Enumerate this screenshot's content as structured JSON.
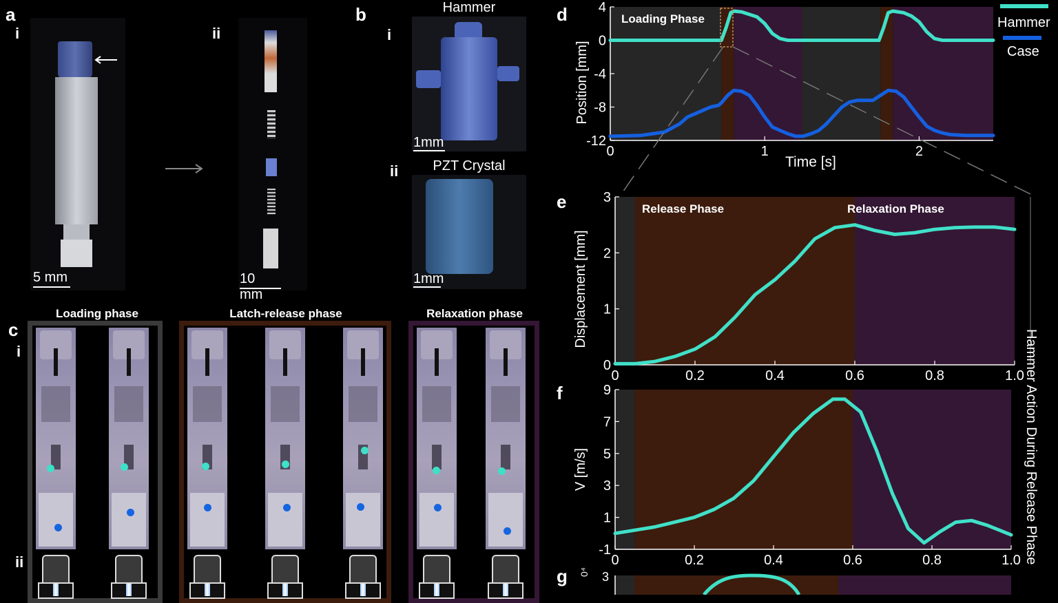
{
  "panels": {
    "a": {
      "label": "a",
      "i": "i",
      "ii": "ii",
      "scale_i": "5 mm",
      "scale_ii": "10 mm"
    },
    "b": {
      "label": "b",
      "i": "i",
      "ii": "ii",
      "hammer_title": "Hammer",
      "crystal_title": "PZT Crystal",
      "scale_i": "1mm",
      "scale_ii": "1mm"
    },
    "c": {
      "label": "c",
      "i": "i",
      "ii": "ii",
      "phase_loading": "Loading phase",
      "phase_latch": "Latch-release phase",
      "phase_relax": "Relaxation phase"
    },
    "d": {
      "label": "d",
      "region_label": "Loading Phase"
    },
    "e": {
      "label": "e",
      "release_label": "Release Phase",
      "relax_label": "Relaxation Phase"
    },
    "f": {
      "label": "f"
    },
    "g": {
      "label": "g",
      "ytick_top": "3",
      "exp": "0⁴"
    }
  },
  "side_caption": "Hammer Action During Release Phase",
  "colors": {
    "hammer": "#40e0c8",
    "case": "#1560e0",
    "loading": "#262626",
    "release": "#3d1c0d",
    "relax": "#341734"
  },
  "chart_data": [
    {
      "name": "d",
      "type": "line",
      "xlabel": "Time [s]",
      "ylabel": "Position  [mm]",
      "xlim": [
        0,
        2.48
      ],
      "ylim": [
        -12,
        4
      ],
      "xticks": [
        0,
        1,
        2
      ],
      "xticklabels": [
        "0",
        "1",
        "2"
      ],
      "yticks": [
        4,
        0,
        -4,
        -8,
        -12
      ],
      "yticklabels": [
        "4",
        "0",
        "-4",
        "-8",
        "-12"
      ],
      "legend": [
        "Hammer",
        "Case"
      ],
      "bands": [
        {
          "x0": 0,
          "x1": 0.72,
          "phase": "loading"
        },
        {
          "x0": 0.72,
          "x1": 0.8,
          "phase": "release"
        },
        {
          "x0": 0.8,
          "x1": 1.24,
          "phase": "relax"
        },
        {
          "x0": 1.24,
          "x1": 1.75,
          "phase": "loading"
        },
        {
          "x0": 1.75,
          "x1": 1.83,
          "phase": "release"
        },
        {
          "x0": 1.83,
          "x1": 2.48,
          "phase": "relax"
        }
      ],
      "series": [
        {
          "name": "Hammer",
          "x": [
            0,
            0.3,
            0.6,
            0.72,
            0.75,
            0.78,
            0.8,
            0.85,
            0.9,
            0.95,
            1.0,
            1.05,
            1.1,
            1.15,
            1.24,
            1.5,
            1.74,
            1.77,
            1.8,
            1.83,
            1.9,
            1.95,
            2.0,
            2.05,
            2.1,
            2.15,
            2.2,
            2.48
          ],
          "y": [
            0,
            0,
            0,
            0,
            1.5,
            3.3,
            3.5,
            3.4,
            3.1,
            2.8,
            2.0,
            0.8,
            0.2,
            0,
            0,
            0,
            0,
            1.5,
            3.3,
            3.5,
            3.3,
            2.9,
            2.2,
            1.0,
            0.2,
            0,
            0,
            0
          ]
        },
        {
          "name": "Case",
          "x": [
            0,
            0.2,
            0.35,
            0.45,
            0.5,
            0.55,
            0.6,
            0.65,
            0.7,
            0.72,
            0.76,
            0.8,
            0.85,
            0.9,
            0.95,
            1.0,
            1.05,
            1.1,
            1.15,
            1.2,
            1.25,
            1.3,
            1.35,
            1.4,
            1.45,
            1.5,
            1.55,
            1.6,
            1.7,
            1.75,
            1.8,
            1.85,
            1.9,
            1.95,
            2.0,
            2.05,
            2.1,
            2.15,
            2.2,
            2.3,
            2.48
          ],
          "y": [
            -11.5,
            -11.4,
            -11,
            -10,
            -9.2,
            -8.8,
            -8.4,
            -8.0,
            -7.8,
            -7.5,
            -6.6,
            -6.0,
            -6.1,
            -6.6,
            -7.8,
            -9.2,
            -10.4,
            -10.8,
            -11.2,
            -11.5,
            -11.5,
            -11.2,
            -10.8,
            -10.0,
            -9.0,
            -8.0,
            -7.4,
            -7.2,
            -7.2,
            -6.6,
            -6.0,
            -6.1,
            -6.8,
            -8.0,
            -9.2,
            -10.3,
            -10.8,
            -11.1,
            -11.3,
            -11.4,
            -11.4
          ]
        }
      ]
    },
    {
      "name": "e",
      "type": "line",
      "xlabel": "",
      "ylabel": "Displacement [mm]",
      "xlim": [
        0,
        1.0
      ],
      "ylim": [
        0,
        3
      ],
      "xticks": [
        0,
        0.2,
        0.4,
        0.6,
        0.8,
        1.0
      ],
      "xticklabels": [
        "0",
        "0.2",
        "0.4",
        "0.6",
        "0.8",
        "1.0"
      ],
      "yticks": [
        3,
        2,
        1,
        0
      ],
      "yticklabels": [
        "3",
        "2",
        "1",
        "0"
      ],
      "bands": [
        {
          "x0": 0,
          "x1": 0.05,
          "phase": "loading"
        },
        {
          "x0": 0.05,
          "x1": 0.6,
          "phase": "release"
        },
        {
          "x0": 0.6,
          "x1": 1.0,
          "phase": "relax"
        }
      ],
      "series": [
        {
          "name": "Hammer",
          "x": [
            0,
            0.05,
            0.1,
            0.15,
            0.2,
            0.25,
            0.3,
            0.35,
            0.4,
            0.45,
            0.5,
            0.55,
            0.6,
            0.65,
            0.7,
            0.75,
            0.8,
            0.85,
            0.9,
            0.95,
            1.0
          ],
          "y": [
            0.02,
            0.02,
            0.06,
            0.15,
            0.28,
            0.5,
            0.85,
            1.25,
            1.52,
            1.85,
            2.25,
            2.45,
            2.5,
            2.4,
            2.33,
            2.36,
            2.42,
            2.45,
            2.46,
            2.46,
            2.42
          ]
        }
      ]
    },
    {
      "name": "f",
      "type": "line",
      "xlabel": "",
      "ylabel": "V [m/s]",
      "xlim": [
        0,
        1.0
      ],
      "ylim": [
        -1,
        9
      ],
      "xticks": [
        0,
        0.2,
        0.4,
        0.6,
        0.8,
        1.0
      ],
      "xticklabels": [
        "0",
        "0.2",
        "0.4",
        "0.6",
        "0.8",
        "1.0"
      ],
      "yticks": [
        9,
        7,
        5,
        3,
        1,
        -1
      ],
      "yticklabels": [
        "9",
        "7",
        "5",
        "3",
        "1",
        "-1"
      ],
      "bands": [
        {
          "x0": 0,
          "x1": 0.05,
          "phase": "loading"
        },
        {
          "x0": 0.05,
          "x1": 0.6,
          "phase": "release"
        },
        {
          "x0": 0.6,
          "x1": 1.0,
          "phase": "relax"
        }
      ],
      "series": [
        {
          "name": "Hammer",
          "x": [
            0,
            0.05,
            0.1,
            0.15,
            0.2,
            0.25,
            0.3,
            0.35,
            0.4,
            0.45,
            0.5,
            0.55,
            0.58,
            0.62,
            0.66,
            0.7,
            0.74,
            0.78,
            0.82,
            0.86,
            0.9,
            0.94,
            1.0
          ],
          "y": [
            0,
            0.2,
            0.4,
            0.7,
            1.0,
            1.5,
            2.2,
            3.3,
            4.8,
            6.3,
            7.5,
            8.4,
            8.4,
            7.6,
            5.2,
            2.5,
            0.3,
            -0.6,
            0.1,
            0.7,
            0.8,
            0.5,
            -0.1
          ]
        }
      ]
    }
  ]
}
